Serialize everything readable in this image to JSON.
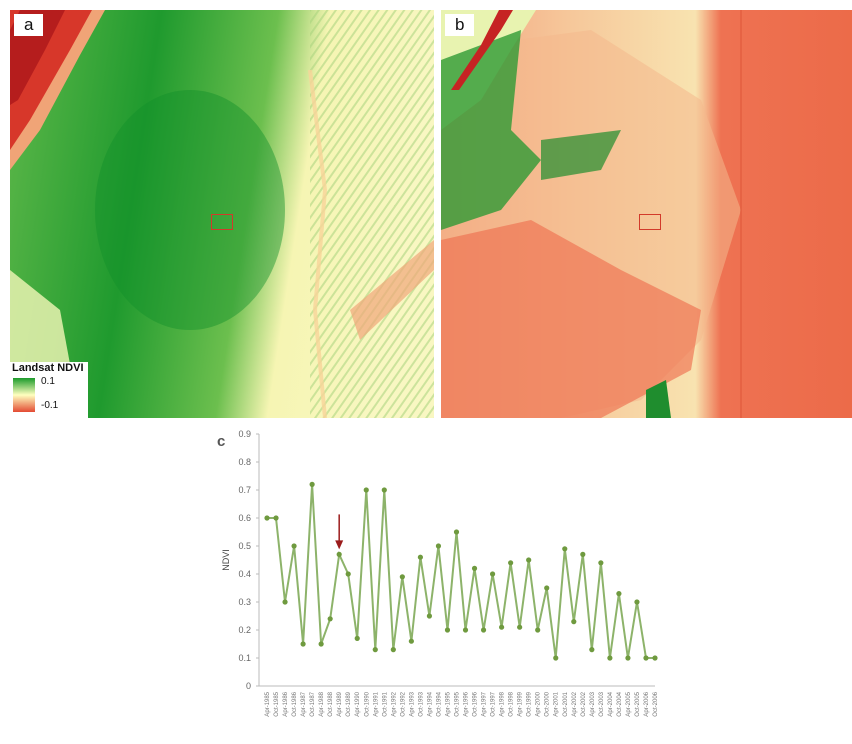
{
  "panels": {
    "a": {
      "label": "a"
    },
    "b": {
      "label": "b"
    }
  },
  "legend": {
    "title": "Landsat NDVI",
    "high": "0.1",
    "low": "-0.1"
  },
  "colors": {
    "ndvi_green": "#1a9a2a",
    "ndvi_yellow": "#ffffbf",
    "ndvi_red": "#e34a33",
    "roi_box": "#d23a2a",
    "line": "#8db36a",
    "marker": "#6f9a3f",
    "arrow": "#9b1c1c"
  },
  "chart_data": {
    "type": "line",
    "panel_label": "c",
    "title": "",
    "xlabel": "",
    "ylabel": "NDVI",
    "ylim": [
      0,
      0.9
    ],
    "yticks": [
      "0",
      "0.1",
      "0.2",
      "0.3",
      "0.4",
      "0.5",
      "0.6",
      "0.7",
      "0.8",
      "0.9"
    ],
    "grid": false,
    "legend": false,
    "categories": [
      "Apr-1985",
      "Oct-1985",
      "Apr-1986",
      "Oct-1986",
      "Apr-1987",
      "Oct-1987",
      "Apr-1988",
      "Oct-1988",
      "Apr-1989",
      "Oct-1989",
      "Apr-1990",
      "Oct-1990",
      "Apr-1991",
      "Oct-1991",
      "Apr-1992",
      "Oct-1992",
      "Apr-1993",
      "Oct-1993",
      "Apr-1994",
      "Oct-1994",
      "Apr-1995",
      "Oct-1995",
      "Apr-1996",
      "Oct-1996",
      "Apr-1997",
      "Oct-1997",
      "Apr-1998",
      "Oct-1998",
      "Apr-1999",
      "Oct-1999",
      "Apr-2000",
      "Oct-2000",
      "Apr-2001",
      "Oct-2001",
      "Apr-2002",
      "Oct-2002",
      "Apr-2003",
      "Oct-2003",
      "Apr-2004",
      "Oct-2004",
      "Apr-2005",
      "Oct-2005",
      "Apr-2006",
      "Oct-2006"
    ],
    "series": [
      {
        "values": [
          0.6,
          0.6,
          0.3,
          0.5,
          0.15,
          0.72,
          0.15,
          0.24,
          0.47,
          0.4,
          0.17,
          0.7,
          0.13,
          0.7,
          0.13,
          0.39,
          0.16,
          0.46,
          0.25,
          0.5,
          0.2,
          0.55,
          0.2,
          0.42,
          0.2,
          0.4,
          0.21,
          0.44,
          0.21,
          0.45,
          0.2,
          0.35,
          0.1,
          0.49,
          0.23,
          0.47,
          0.13,
          0.44,
          0.1,
          0.33,
          0.1,
          0.3,
          0.1,
          0.1
        ]
      }
    ],
    "annotation": {
      "type": "arrow",
      "category_index": 8
    }
  }
}
